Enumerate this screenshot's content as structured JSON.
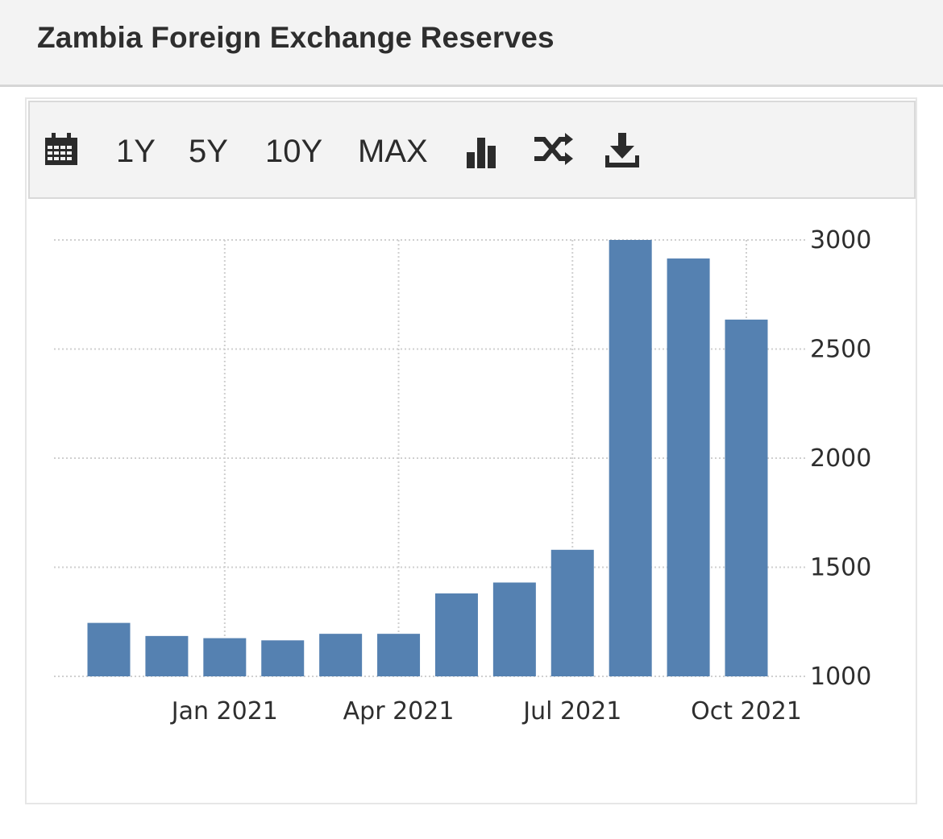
{
  "header": {
    "title": "Zambia Foreign Exchange Reserves"
  },
  "toolbar": {
    "icons": [
      "calendar-icon",
      "bar-chart-icon",
      "shuffle-icon",
      "download-icon"
    ],
    "ranges": [
      "1Y",
      "5Y",
      "10Y",
      "MAX"
    ]
  },
  "colors": {
    "bar": "#5581b1",
    "grid": "#cfcfcf",
    "text": "#2e2e2e",
    "header_bg": "#f3f3f3"
  },
  "chart_data": {
    "type": "bar",
    "title": "",
    "xlabel": "",
    "ylabel": "",
    "categories": [
      "Nov 2020",
      "Dec 2020",
      "Jan 2021",
      "Feb 2021",
      "Mar 2021",
      "Apr 2021",
      "May 2021",
      "Jun 2021",
      "Jul 2021",
      "Aug 2021",
      "Sep 2021",
      "Oct 2021"
    ],
    "values": [
      1245,
      1185,
      1175,
      1165,
      1195,
      1195,
      1380,
      1430,
      1580,
      3000,
      2915,
      2635
    ],
    "ylim": [
      1000,
      3000
    ],
    "yticks": [
      1000,
      1500,
      2000,
      2500,
      3000
    ],
    "xtick_labels": [
      {
        "category": "Jan 2021",
        "label": "Jan 2021"
      },
      {
        "category": "Apr 2021",
        "label": "Apr 2021"
      },
      {
        "category": "Jul 2021",
        "label": "Jul 2021"
      },
      {
        "category": "Oct 2021",
        "label": "Oct 2021"
      }
    ],
    "y_axis_side": "right",
    "grid": true,
    "legend": "none"
  }
}
